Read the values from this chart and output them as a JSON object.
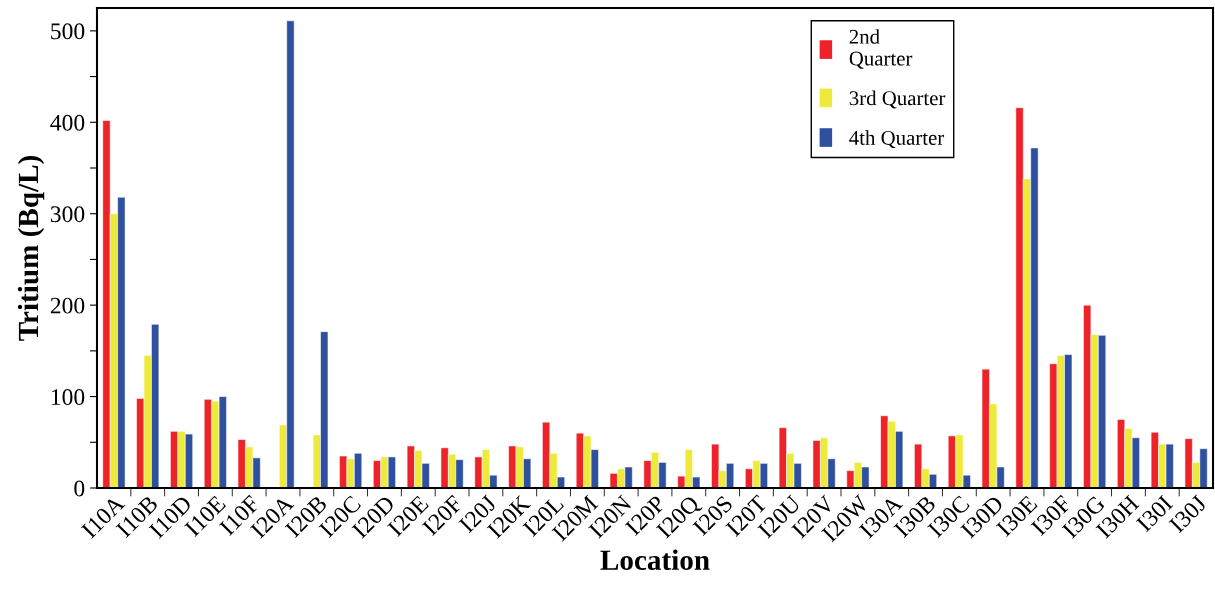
{
  "chart_data": {
    "type": "bar",
    "xlabel": "Location",
    "ylabel": "Tritium (Bq/L)",
    "categories": [
      "I10A",
      "I10B",
      "I10D",
      "I10E",
      "I10F",
      "I20A",
      "I20B",
      "I20C",
      "I20D",
      "I20E",
      "I20F",
      "I20J",
      "I20K",
      "I20L",
      "I20M",
      "I20N",
      "I20P",
      "I20Q",
      "I20S",
      "I20T",
      "I20U",
      "I20V",
      "I20W",
      "I30A",
      "I30B",
      "I30C",
      "I30D",
      "I30E",
      "I30F",
      "I30G",
      "I30H",
      "I30I",
      "I30J"
    ],
    "series": [
      {
        "name": "2nd\nQuarter",
        "color": "#ee2229",
        "values": [
          402,
          98,
          62,
          97,
          53,
          null,
          null,
          35,
          30,
          46,
          44,
          34,
          46,
          72,
          60,
          16,
          30,
          13,
          48,
          21,
          66,
          52,
          19,
          79,
          48,
          57,
          130,
          416,
          136,
          200,
          75,
          61,
          54
        ]
      },
      {
        "name": "3rd Quarter",
        "color": "#eeea3c",
        "values": [
          300,
          145,
          62,
          95,
          45,
          69,
          58,
          32,
          34,
          41,
          37,
          42,
          45,
          38,
          57,
          21,
          39,
          42,
          19,
          30,
          38,
          55,
          28,
          73,
          21,
          58,
          92,
          338,
          145,
          168,
          65,
          48,
          28
        ]
      },
      {
        "name": "4th Quarter",
        "color": "#2f4f9f",
        "values": [
          318,
          179,
          59,
          100,
          33,
          511,
          171,
          38,
          34,
          27,
          31,
          14,
          32,
          12,
          42,
          23,
          28,
          12,
          27,
          27,
          27,
          32,
          23,
          62,
          15,
          14,
          23,
          372,
          146,
          167,
          55,
          48,
          43
        ]
      }
    ],
    "ylim": [
      0,
      525
    ],
    "yticks": [
      0,
      {
        "value": 50,
        "label": null
      },
      100,
      {
        "value": 150,
        "label": null
      },
      200,
      {
        "value": 250,
        "label": null
      },
      300,
      {
        "value": 350,
        "label": null
      },
      400,
      {
        "value": 450,
        "label": null
      },
      500
    ],
    "grid": false,
    "legend": "top right"
  }
}
